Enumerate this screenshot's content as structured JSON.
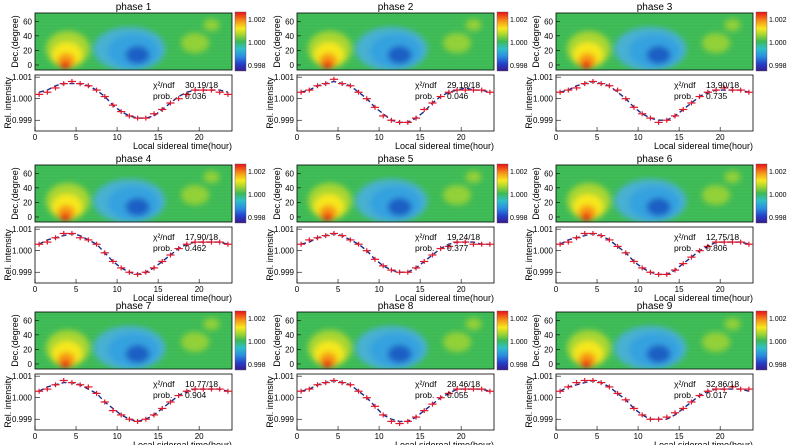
{
  "figure": {
    "ylabel_map": "Dec.(degree)",
    "ylabel_curve": "Rel. intensity",
    "xlabel": "Local sidereal time(hour)",
    "map_yticks": [
      "60",
      "40",
      "20",
      "0"
    ],
    "curve_yticks": [
      "1.001",
      "1.000",
      "0.999"
    ],
    "xticks": [
      "0",
      "5",
      "10",
      "15",
      "20"
    ],
    "colorbar_ticks": [
      "1.002",
      "1.000",
      "0.998"
    ],
    "chi_label": "χ²/ndf",
    "prob_label": "prob.",
    "colors": {
      "map_background": "#3dba55",
      "data_marker": "#e0182a",
      "fit_curve": "#1a2a8c",
      "excess": "#f7e81e",
      "hot": "#f01c10",
      "deficit": "#36a2e0",
      "deep_deficit": "#1a5fc4"
    }
  },
  "chart_data": [
    {
      "type": "line",
      "title": "phase 1",
      "chi2": "30.19/18",
      "prob": "0.036",
      "xlabel": "Local sidereal time(hour)",
      "ylabel": "Rel. intensity",
      "xlim": [
        0,
        24
      ],
      "ylim": [
        0.9985,
        1.0011
      ],
      "x": [
        0.5,
        1.5,
        2.5,
        3.5,
        4.5,
        5.5,
        6.5,
        7.5,
        8.5,
        9.5,
        10.5,
        11.5,
        12.5,
        13.5,
        14.5,
        15.5,
        16.5,
        17.5,
        18.5,
        19.5,
        20.5,
        21.5,
        22.5,
        23.5
      ],
      "data": [
        1.0002,
        1.0003,
        1.0005,
        1.0007,
        1.0008,
        1.0007,
        1.0006,
        1.0004,
        1.0001,
        0.9997,
        0.9994,
        0.9992,
        0.9991,
        0.9991,
        0.9993,
        0.9995,
        0.9998,
        1.0,
        1.0002,
        1.0004,
        1.0004,
        1.0004,
        1.0003,
        1.0002
      ],
      "fit": [
        1.0003,
        1.0004,
        1.0006,
        1.0007,
        1.0007,
        1.0007,
        1.0006,
        1.0004,
        1.0001,
        0.9997,
        0.9994,
        0.9992,
        0.9991,
        0.9991,
        0.9992,
        0.9995,
        0.9998,
        1.0001,
        1.0003,
        1.0004,
        1.0004,
        1.0004,
        1.0004,
        1.0003
      ]
    },
    {
      "type": "line",
      "title": "phase 2",
      "chi2": "29.18/18",
      "prob": "0.046",
      "xlabel": "Local sidereal time(hour)",
      "ylabel": "Rel. intensity",
      "xlim": [
        0,
        24
      ],
      "ylim": [
        0.9985,
        1.0011
      ],
      "x": [
        0.5,
        1.5,
        2.5,
        3.5,
        4.5,
        5.5,
        6.5,
        7.5,
        8.5,
        9.5,
        10.5,
        11.5,
        12.5,
        13.5,
        14.5,
        15.5,
        16.5,
        17.5,
        18.5,
        19.5,
        20.5,
        21.5,
        22.5,
        23.5
      ],
      "data": [
        1.0003,
        1.0004,
        1.0006,
        1.0007,
        1.0009,
        1.0007,
        1.0006,
        1.0003,
        1.0,
        0.9996,
        0.9992,
        0.999,
        0.9989,
        0.9989,
        0.9991,
        0.9995,
        0.9998,
        1.0001,
        1.0003,
        1.0004,
        1.0004,
        1.0004,
        1.0004,
        1.0003
      ],
      "fit": [
        1.0003,
        1.0004,
        1.0006,
        1.0007,
        1.0008,
        1.0007,
        1.0006,
        1.0003,
        1.0,
        0.9996,
        0.9993,
        0.999,
        0.9989,
        0.9989,
        0.9991,
        0.9994,
        0.9998,
        1.0001,
        1.0003,
        1.0004,
        1.0005,
        1.0004,
        1.0004,
        1.0003
      ]
    },
    {
      "type": "line",
      "title": "phase 3",
      "chi2": "13.90/18",
      "prob": "0.735",
      "xlabel": "Local sidereal time(hour)",
      "ylabel": "Rel. intensity",
      "xlim": [
        0,
        24
      ],
      "ylim": [
        0.9985,
        1.0011
      ],
      "x": [
        0.5,
        1.5,
        2.5,
        3.5,
        4.5,
        5.5,
        6.5,
        7.5,
        8.5,
        9.5,
        10.5,
        11.5,
        12.5,
        13.5,
        14.5,
        15.5,
        16.5,
        17.5,
        18.5,
        19.5,
        20.5,
        21.5,
        22.5,
        23.5
      ],
      "data": [
        1.0003,
        1.0004,
        1.0005,
        1.0007,
        1.0008,
        1.0007,
        1.0006,
        1.0004,
        1.0,
        0.9996,
        0.9993,
        0.9991,
        0.9989,
        0.999,
        0.9992,
        0.9995,
        0.9998,
        1.0001,
        1.0003,
        1.0004,
        1.0005,
        1.0004,
        1.0004,
        1.0003
      ],
      "fit": [
        1.0003,
        1.0004,
        1.0006,
        1.0007,
        1.0008,
        1.0007,
        1.0006,
        1.0003,
        1.0,
        0.9996,
        0.9993,
        0.9991,
        0.999,
        0.999,
        0.9992,
        0.9995,
        0.9998,
        1.0001,
        1.0003,
        1.0004,
        1.0004,
        1.0004,
        1.0004,
        1.0003
      ]
    },
    {
      "type": "line",
      "title": "phase 4",
      "chi2": "17.90/18",
      "prob": "0.462",
      "xlabel": "Local sidereal time(hour)",
      "ylabel": "Rel. intensity",
      "xlim": [
        0,
        24
      ],
      "ylim": [
        0.9985,
        1.0011
      ],
      "x": [
        0.5,
        1.5,
        2.5,
        3.5,
        4.5,
        5.5,
        6.5,
        7.5,
        8.5,
        9.5,
        10.5,
        11.5,
        12.5,
        13.5,
        14.5,
        15.5,
        16.5,
        17.5,
        18.5,
        19.5,
        20.5,
        21.5,
        22.5,
        23.5
      ],
      "data": [
        1.0003,
        1.0004,
        1.0006,
        1.0008,
        1.0008,
        1.0006,
        1.0005,
        1.0003,
        0.9999,
        0.9995,
        0.9992,
        0.999,
        0.9989,
        0.999,
        0.9992,
        0.9995,
        0.9998,
        1.0001,
        1.0003,
        1.0004,
        1.0004,
        1.0004,
        1.0004,
        1.0003
      ],
      "fit": [
        1.0003,
        1.0005,
        1.0006,
        1.0007,
        1.0008,
        1.0007,
        1.0005,
        1.0003,
        0.9999,
        0.9995,
        0.9992,
        0.999,
        0.9989,
        0.999,
        0.9992,
        0.9995,
        0.9998,
        1.0001,
        1.0003,
        1.0004,
        1.0004,
        1.0004,
        1.0004,
        1.0003
      ]
    },
    {
      "type": "line",
      "title": "phase 5",
      "chi2": "19.24/18",
      "prob": "0.377",
      "xlabel": "Local sidereal time(hour)",
      "ylabel": "Rel. intensity",
      "xlim": [
        0,
        24
      ],
      "ylim": [
        0.9985,
        1.0011
      ],
      "x": [
        0.5,
        1.5,
        2.5,
        3.5,
        4.5,
        5.5,
        6.5,
        7.5,
        8.5,
        9.5,
        10.5,
        11.5,
        12.5,
        13.5,
        14.5,
        15.5,
        16.5,
        17.5,
        18.5,
        19.5,
        20.5,
        21.5,
        22.5,
        23.5
      ],
      "data": [
        1.0003,
        1.0005,
        1.0006,
        1.0007,
        1.0008,
        1.0007,
        1.0005,
        1.0003,
        1.0,
        0.9996,
        0.9993,
        0.9991,
        0.999,
        0.999,
        0.9992,
        0.9995,
        0.9998,
        1.0001,
        1.0002,
        1.0004,
        1.0004,
        1.0003,
        1.0003,
        1.0003
      ],
      "fit": [
        1.0003,
        1.0004,
        1.0006,
        1.0007,
        1.0008,
        1.0007,
        1.0005,
        1.0003,
        1.0,
        0.9996,
        0.9993,
        0.9991,
        0.999,
        0.999,
        0.9992,
        0.9995,
        0.9998,
        1.0001,
        1.0003,
        1.0004,
        1.0004,
        1.0004,
        1.0003,
        1.0003
      ]
    },
    {
      "type": "line",
      "title": "phase 6",
      "chi2": "12.75/18",
      "prob": "0.806",
      "xlabel": "Local sidereal time(hour)",
      "ylabel": "Rel. intensity",
      "xlim": [
        0,
        24
      ],
      "ylim": [
        0.9985,
        1.0011
      ],
      "x": [
        0.5,
        1.5,
        2.5,
        3.5,
        4.5,
        5.5,
        6.5,
        7.5,
        8.5,
        9.5,
        10.5,
        11.5,
        12.5,
        13.5,
        14.5,
        15.5,
        16.5,
        17.5,
        18.5,
        19.5,
        20.5,
        21.5,
        22.5,
        23.5
      ],
      "data": [
        1.0003,
        1.0004,
        1.0006,
        1.0008,
        1.0008,
        1.0007,
        1.0005,
        1.0002,
        0.9999,
        0.9995,
        0.9992,
        0.999,
        0.9989,
        0.9989,
        0.9991,
        0.9994,
        0.9997,
        1.0,
        1.0002,
        1.0004,
        1.0004,
        1.0004,
        1.0004,
        1.0003
      ],
      "fit": [
        1.0003,
        1.0005,
        1.0006,
        1.0007,
        1.0008,
        1.0007,
        1.0005,
        1.0002,
        0.9999,
        0.9995,
        0.9992,
        0.999,
        0.9989,
        0.9989,
        0.9991,
        0.9994,
        0.9997,
        1.0,
        1.0002,
        1.0004,
        1.0004,
        1.0004,
        1.0004,
        1.0003
      ]
    },
    {
      "type": "line",
      "title": "phase 7",
      "chi2": "10.77/18",
      "prob": "0.904",
      "xlabel": "Local sidereal time(hour)",
      "ylabel": "Rel. intensity",
      "xlim": [
        0,
        24
      ],
      "ylim": [
        0.9985,
        1.0011
      ],
      "x": [
        0.5,
        1.5,
        2.5,
        3.5,
        4.5,
        5.5,
        6.5,
        7.5,
        8.5,
        9.5,
        10.5,
        11.5,
        12.5,
        13.5,
        14.5,
        15.5,
        16.5,
        17.5,
        18.5,
        19.5,
        20.5,
        21.5,
        22.5,
        23.5
      ],
      "data": [
        1.0003,
        1.0004,
        1.0006,
        1.0008,
        1.0007,
        1.0006,
        1.0005,
        1.0002,
        0.9998,
        0.9994,
        0.9992,
        0.999,
        0.9989,
        0.999,
        0.9992,
        0.9995,
        0.9998,
        1.0001,
        1.0003,
        1.0004,
        1.0004,
        1.0004,
        1.0004,
        1.0003
      ],
      "fit": [
        1.0003,
        1.0005,
        1.0006,
        1.0007,
        1.0007,
        1.0006,
        1.0004,
        1.0002,
        0.9998,
        0.9995,
        0.9992,
        0.999,
        0.9989,
        0.999,
        0.9992,
        0.9995,
        0.9998,
        1.0001,
        1.0003,
        1.0004,
        1.0004,
        1.0004,
        1.0004,
        1.0003
      ]
    },
    {
      "type": "line",
      "title": "phase 8",
      "chi2": "28.46/18",
      "prob": "0.055",
      "xlabel": "Local sidereal time(hour)",
      "ylabel": "Rel. intensity",
      "xlim": [
        0,
        24
      ],
      "ylim": [
        0.9985,
        1.0011
      ],
      "x": [
        0.5,
        1.5,
        2.5,
        3.5,
        4.5,
        5.5,
        6.5,
        7.5,
        8.5,
        9.5,
        10.5,
        11.5,
        12.5,
        13.5,
        14.5,
        15.5,
        16.5,
        17.5,
        18.5,
        19.5,
        20.5,
        21.5,
        22.5,
        23.5
      ],
      "data": [
        1.0003,
        1.0004,
        1.0006,
        1.0007,
        1.0008,
        1.0007,
        1.0006,
        1.0003,
        1.0,
        0.9996,
        0.9992,
        0.9989,
        0.9988,
        0.9989,
        0.9991,
        0.9994,
        0.9997,
        1.0,
        1.0002,
        1.0004,
        1.0004,
        1.0004,
        1.0004,
        1.0003
      ],
      "fit": [
        1.0003,
        1.0004,
        1.0006,
        1.0007,
        1.0008,
        1.0007,
        1.0006,
        1.0003,
        1.0,
        0.9996,
        0.9992,
        0.999,
        0.9989,
        0.9989,
        0.9991,
        0.9994,
        0.9997,
        1.0,
        1.0002,
        1.0004,
        1.0004,
        1.0004,
        1.0004,
        1.0003
      ]
    },
    {
      "type": "line",
      "title": "phase 9",
      "chi2": "32.86/18",
      "prob": "0.017",
      "xlabel": "Local sidereal time(hour)",
      "ylabel": "Rel. intensity",
      "xlim": [
        0,
        24
      ],
      "ylim": [
        0.9985,
        1.0011
      ],
      "x": [
        0.5,
        1.5,
        2.5,
        3.5,
        4.5,
        5.5,
        6.5,
        7.5,
        8.5,
        9.5,
        10.5,
        11.5,
        12.5,
        13.5,
        14.5,
        15.5,
        16.5,
        17.5,
        18.5,
        19.5,
        20.5,
        21.5,
        22.5,
        23.5
      ],
      "data": [
        1.0003,
        1.0005,
        1.0007,
        1.0008,
        1.0008,
        1.0007,
        1.0005,
        1.0002,
        0.9999,
        0.9995,
        0.9992,
        0.999,
        0.999,
        0.9991,
        0.9993,
        0.9995,
        0.9998,
        1.0001,
        1.0003,
        1.0004,
        1.0004,
        1.0005,
        1.0004,
        1.0004
      ],
      "fit": [
        1.0003,
        1.0005,
        1.0006,
        1.0007,
        1.0008,
        1.0007,
        1.0005,
        1.0002,
        0.9999,
        0.9995,
        0.9992,
        0.999,
        0.999,
        0.999,
        0.9992,
        0.9995,
        0.9998,
        1.0001,
        1.0003,
        1.0004,
        1.0004,
        1.0004,
        1.0004,
        1.0003
      ]
    }
  ]
}
